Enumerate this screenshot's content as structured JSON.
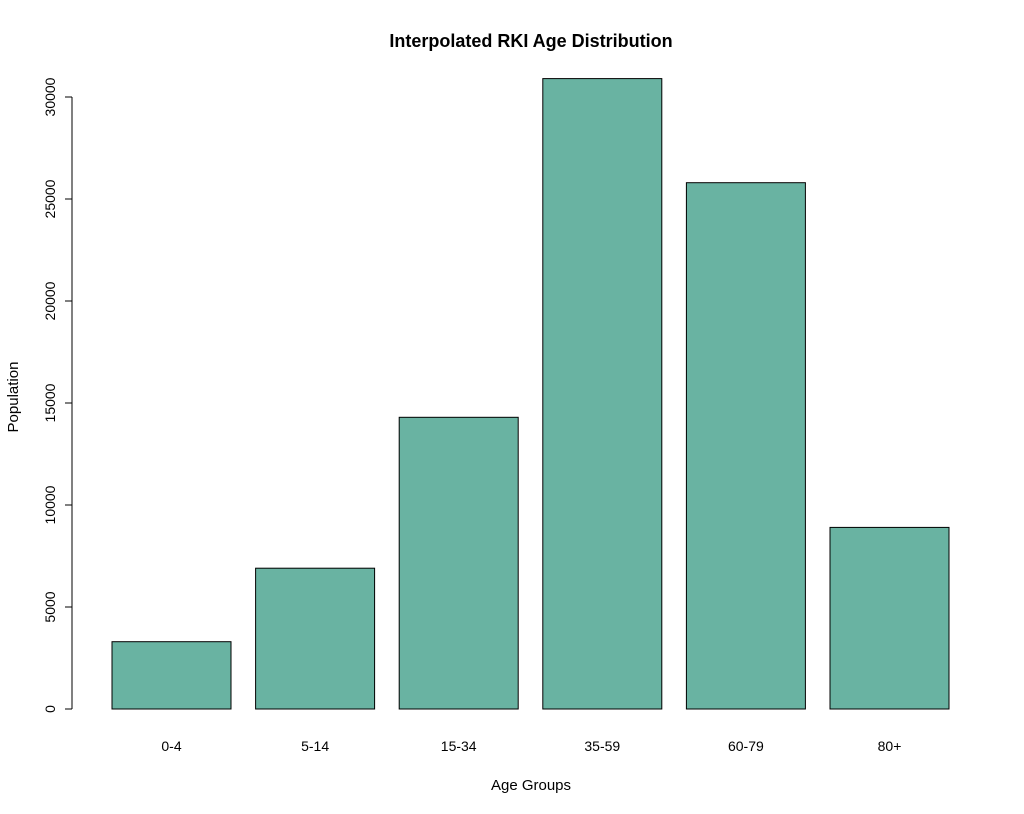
{
  "chart_data": {
    "type": "bar",
    "title": "Interpolated RKI Age Distribution",
    "xlabel": "Age Groups",
    "ylabel": "Population",
    "categories": [
      "0-4",
      "5-14",
      "15-34",
      "35-59",
      "60-79",
      "80+"
    ],
    "values": [
      3300,
      6900,
      14300,
      30900,
      25800,
      8900
    ],
    "ylim": [
      0,
      30000
    ],
    "yticks": [
      "0",
      "5000",
      "10000",
      "15000",
      "20000",
      "25000",
      "30000"
    ],
    "bar_color": "#69b3a2",
    "grid": false,
    "legend": "none"
  }
}
